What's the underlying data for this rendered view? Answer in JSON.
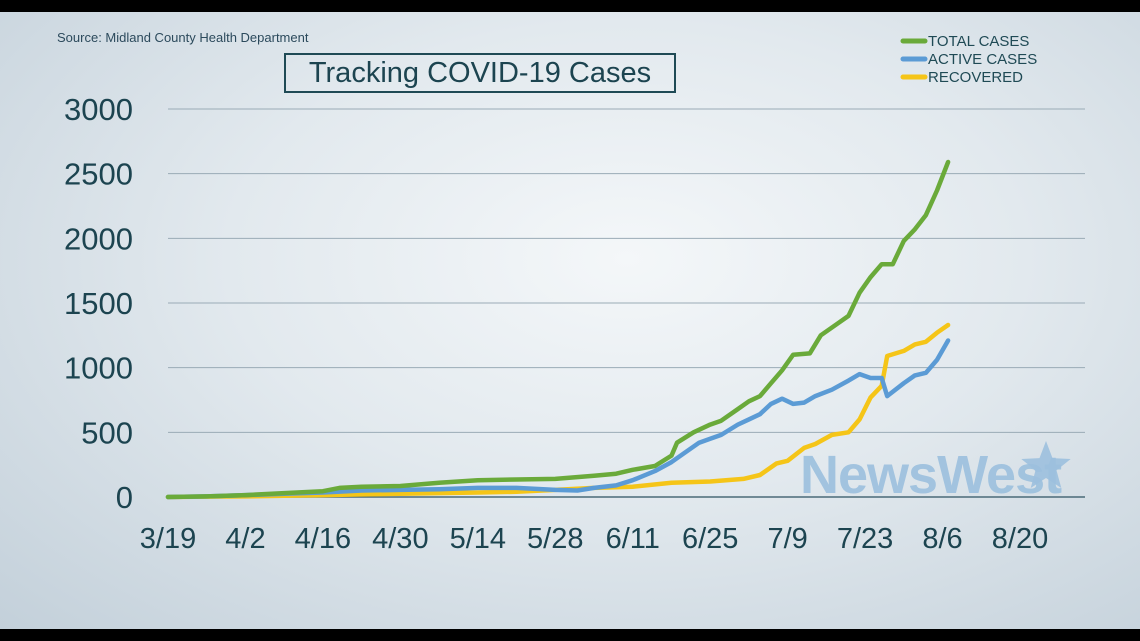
{
  "source": "Source: Midland County Health Department",
  "watermark": "NewsWest",
  "chart_data": {
    "type": "line",
    "title": "Tracking COVID-19 Cases",
    "xlabel": "",
    "ylabel": "",
    "ylim": [
      0,
      3000
    ],
    "xlim": [
      "2020-03-19",
      "2020-08-27"
    ],
    "yticks": [
      0,
      500,
      1000,
      1500,
      2000,
      2500,
      3000
    ],
    "yticklabels": [
      "0",
      "500",
      "1000",
      "1500",
      "2000",
      "2500",
      "3000"
    ],
    "xticks": [
      "2020-03-19",
      "2020-04-02",
      "2020-04-16",
      "2020-04-30",
      "2020-05-14",
      "2020-05-28",
      "2020-06-11",
      "2020-06-25",
      "2020-07-09",
      "2020-07-23",
      "2020-08-06",
      "2020-08-20"
    ],
    "xticklabels": [
      "3/19",
      "4/2",
      "4/16",
      "4/30",
      "5/14",
      "5/28",
      "6/11",
      "6/25",
      "7/9",
      "7/23",
      "8/6",
      "8/20"
    ],
    "grid": true,
    "legend_position": "top-right",
    "series": [
      {
        "name": "TOTAL CASES",
        "color": "#6aaa3a",
        "x": [
          "2020-03-19",
          "2020-03-26",
          "2020-04-02",
          "2020-04-09",
          "2020-04-16",
          "2020-04-19",
          "2020-04-23",
          "2020-04-30",
          "2020-05-07",
          "2020-05-14",
          "2020-05-21",
          "2020-05-28",
          "2020-06-04",
          "2020-06-08",
          "2020-06-11",
          "2020-06-15",
          "2020-06-18",
          "2020-06-19",
          "2020-06-22",
          "2020-06-25",
          "2020-06-27",
          "2020-06-30",
          "2020-07-02",
          "2020-07-04",
          "2020-07-06",
          "2020-07-08",
          "2020-07-10",
          "2020-07-13",
          "2020-07-15",
          "2020-07-18",
          "2020-07-20",
          "2020-07-22",
          "2020-07-24",
          "2020-07-26",
          "2020-07-28",
          "2020-07-30",
          "2020-08-01",
          "2020-08-03",
          "2020-08-05",
          "2020-08-07"
        ],
        "y": [
          0,
          5,
          15,
          30,
          45,
          70,
          80,
          85,
          110,
          130,
          135,
          140,
          165,
          180,
          210,
          240,
          320,
          420,
          500,
          560,
          590,
          680,
          740,
          780,
          880,
          980,
          1100,
          1110,
          1250,
          1340,
          1400,
          1580,
          1700,
          1800,
          1800,
          1980,
          2070,
          2180,
          2370,
          2590
        ]
      },
      {
        "name": "ACTIVE CASES",
        "color": "#5b9bd5",
        "x": [
          "2020-03-19",
          "2020-03-26",
          "2020-04-02",
          "2020-04-09",
          "2020-04-16",
          "2020-04-23",
          "2020-04-30",
          "2020-05-07",
          "2020-05-14",
          "2020-05-21",
          "2020-05-28",
          "2020-06-01",
          "2020-06-04",
          "2020-06-08",
          "2020-06-11",
          "2020-06-15",
          "2020-06-18",
          "2020-06-20",
          "2020-06-23",
          "2020-06-25",
          "2020-06-27",
          "2020-06-30",
          "2020-07-02",
          "2020-07-04",
          "2020-07-06",
          "2020-07-08",
          "2020-07-10",
          "2020-07-12",
          "2020-07-14",
          "2020-07-17",
          "2020-07-20",
          "2020-07-22",
          "2020-07-24",
          "2020-07-26",
          "2020-07-27",
          "2020-07-30",
          "2020-08-01",
          "2020-08-03",
          "2020-08-05",
          "2020-08-07"
        ],
        "y": [
          0,
          5,
          15,
          25,
          35,
          50,
          55,
          60,
          70,
          70,
          55,
          50,
          70,
          90,
          130,
          200,
          270,
          330,
          420,
          450,
          480,
          560,
          600,
          640,
          720,
          760,
          720,
          730,
          780,
          830,
          900,
          950,
          920,
          920,
          780,
          880,
          940,
          960,
          1060,
          1210
        ]
      },
      {
        "name": "RECOVERED",
        "color": "#f5c518",
        "x": [
          "2020-03-19",
          "2020-03-26",
          "2020-04-02",
          "2020-04-09",
          "2020-04-16",
          "2020-04-23",
          "2020-04-30",
          "2020-05-07",
          "2020-05-14",
          "2020-05-21",
          "2020-05-28",
          "2020-06-04",
          "2020-06-11",
          "2020-06-18",
          "2020-06-25",
          "2020-07-01",
          "2020-07-04",
          "2020-07-07",
          "2020-07-09",
          "2020-07-12",
          "2020-07-14",
          "2020-07-17",
          "2020-07-20",
          "2020-07-22",
          "2020-07-24",
          "2020-07-26",
          "2020-07-27",
          "2020-07-30",
          "2020-08-01",
          "2020-08-03",
          "2020-08-05",
          "2020-08-07"
        ],
        "y": [
          0,
          3,
          5,
          10,
          15,
          20,
          25,
          30,
          35,
          40,
          55,
          70,
          80,
          110,
          120,
          140,
          170,
          260,
          280,
          380,
          410,
          480,
          500,
          600,
          770,
          860,
          1090,
          1130,
          1180,
          1200,
          1270,
          1330
        ]
      }
    ]
  }
}
